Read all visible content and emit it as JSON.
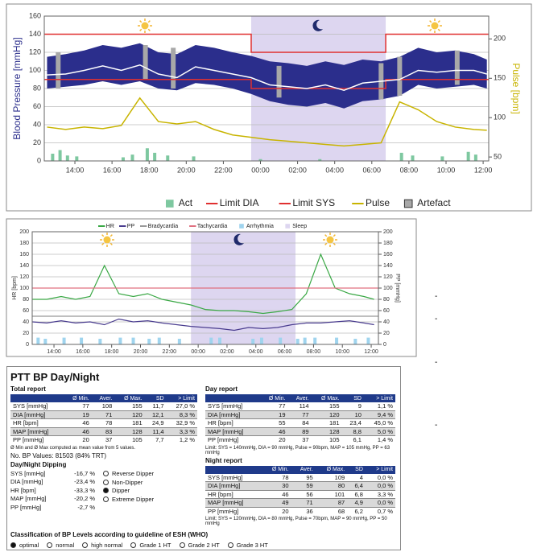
{
  "chart_data": [
    {
      "type": "line",
      "ylabel": "Blood Pressure [mmHg]",
      "y2label": "Pulse [bpm]",
      "xlim": [
        12.35,
        36.3
      ],
      "ylim": [
        0,
        160
      ],
      "y2lim": [
        45,
        229
      ],
      "xticks": [
        {
          "value": 14,
          "label": "14:00"
        },
        {
          "value": 16,
          "label": "16:00"
        },
        {
          "value": 18,
          "label": "18:00"
        },
        {
          "value": 20,
          "label": "20:00"
        },
        {
          "value": 22,
          "label": "22:00"
        },
        {
          "value": 24,
          "label": "00:00"
        },
        {
          "value": 26,
          "label": "02:00"
        },
        {
          "value": 28,
          "label": "04:00"
        },
        {
          "value": 30,
          "label": "06:00"
        },
        {
          "value": 32,
          "label": "08:00"
        },
        {
          "value": 34,
          "label": "10:00"
        },
        {
          "value": 36,
          "label": "12:00"
        }
      ],
      "yticks": [
        0,
        20,
        40,
        60,
        80,
        100,
        120,
        140,
        160
      ],
      "y2ticks": [
        50,
        100,
        150,
        200
      ],
      "grid": true,
      "series": [
        {
          "name": "Act",
          "kind": "bar",
          "color": "#7ec8a0",
          "x": [
            12.8,
            13.2,
            13.6,
            14.1,
            16.6,
            17.1,
            17.9,
            18.3,
            19.0,
            20.4,
            24.0,
            27.2,
            31.6,
            32.2,
            33.8,
            35.2,
            35.6
          ],
          "values": [
            8,
            12,
            6,
            5,
            4,
            7,
            14,
            9,
            6,
            5,
            2,
            2,
            9,
            6,
            5,
            10,
            7
          ]
        },
        {
          "name": "Limit DIA",
          "kind": "line",
          "color": "#e03030",
          "x": [
            12.35,
            23.5,
            23.5,
            30.75,
            30.75,
            36.3
          ],
          "values": [
            90,
            90,
            80,
            80,
            90,
            90
          ]
        },
        {
          "name": "Limit SYS",
          "kind": "line",
          "color": "#e03030",
          "x": [
            12.35,
            23.5,
            23.5,
            30.75,
            30.75,
            36.3
          ],
          "values": [
            140,
            140,
            120,
            120,
            140,
            140
          ]
        },
        {
          "name": "Pulse",
          "kind": "line",
          "axis": "y2",
          "color": "#c8b400",
          "x": [
            12.5,
            13.5,
            14.5,
            15.5,
            16.5,
            17.5,
            18.5,
            19.5,
            20.5,
            21.5,
            22.5,
            23.5,
            24.5,
            25.5,
            26.5,
            27.5,
            28.5,
            29.5,
            30.5,
            31.5,
            32.5,
            33.5,
            34.5,
            35.5,
            36.2
          ],
          "values": [
            88,
            85,
            88,
            86,
            90,
            125,
            95,
            92,
            95,
            85,
            78,
            75,
            72,
            70,
            68,
            66,
            64,
            66,
            68,
            120,
            110,
            95,
            88,
            85,
            84
          ]
        },
        {
          "name": "Artefact",
          "kind": "artefact",
          "color": "#a8a8a8",
          "x": [
            13.1,
            17.8,
            19.3,
            25.0,
            30.5,
            31.5,
            34.6
          ],
          "values": [
            120,
            128,
            125,
            105,
            108,
            115,
            122
          ],
          "low": [
            80,
            90,
            80,
            70,
            68,
            72,
            84
          ]
        },
        {
          "kind": "span",
          "color": "#ddd6f0",
          "x": [
            23.5,
            30.75
          ]
        },
        {
          "kind": "band",
          "color": "#2b2e8c",
          "x": [
            12.5,
            13.5,
            14.5,
            15.5,
            16.5,
            17.5,
            18.5,
            19.5,
            20.5,
            21.5,
            22.5,
            23.5,
            24.5,
            25.5,
            26.5,
            27.5,
            28.5,
            29.5,
            30.5,
            31.5,
            32.5,
            33.5,
            34.5,
            35.5,
            36.2
          ],
          "values": [
            115,
            118,
            122,
            128,
            125,
            130,
            120,
            118,
            128,
            125,
            120,
            116,
            110,
            108,
            105,
            110,
            106,
            112,
            110,
            115,
            125,
            120,
            122,
            118,
            112
          ],
          "low": [
            80,
            82,
            84,
            88,
            84,
            88,
            80,
            78,
            86,
            84,
            80,
            74,
            66,
            62,
            60,
            64,
            58,
            66,
            68,
            72,
            84,
            80,
            82,
            84,
            80
          ]
        },
        {
          "kind": "line",
          "color": "#ffffff",
          "x": [
            12.5,
            13.5,
            14.5,
            15.5,
            16.5,
            17.5,
            18.5,
            19.5,
            20.5,
            21.5,
            22.5,
            23.5,
            24.5,
            25.5,
            26.5,
            27.5,
            28.5,
            29.5,
            30.5,
            31.5,
            32.5,
            33.5,
            34.5,
            35.5,
            36.2
          ],
          "values": [
            95,
            96,
            100,
            105,
            100,
            106,
            96,
            92,
            104,
            100,
            96,
            92,
            84,
            82,
            80,
            84,
            78,
            86,
            88,
            90,
            100,
            98,
            100,
            100,
            96
          ]
        }
      ]
    },
    {
      "type": "line",
      "ylabel": "HR [bpm]",
      "y2label": "PP [mmHg]",
      "xlim": [
        12.49,
        36.5
      ],
      "ylim": [
        0,
        200
      ],
      "y2lim": [
        0,
        200
      ],
      "xticks": [
        {
          "value": 14,
          "label": "14:00"
        },
        {
          "value": 16,
          "label": "16:00"
        },
        {
          "value": 18,
          "label": "18:00"
        },
        {
          "value": 20,
          "label": "20:00"
        },
        {
          "value": 22,
          "label": "22:00"
        },
        {
          "value": 24,
          "label": "00:00"
        },
        {
          "value": 26,
          "label": "02:00"
        },
        {
          "value": 28,
          "label": "04:00"
        },
        {
          "value": 30,
          "label": "06:00"
        },
        {
          "value": 32,
          "label": "08:00"
        },
        {
          "value": 34,
          "label": "10:00"
        },
        {
          "value": 36,
          "label": "12:00"
        }
      ],
      "yticks": [
        0,
        20,
        40,
        60,
        80,
        100,
        120,
        140,
        160,
        180,
        200
      ],
      "y2ticks": [
        0,
        20,
        40,
        60,
        80,
        100,
        120,
        140,
        160,
        180,
        200
      ],
      "grid": true,
      "series": [
        {
          "name": "HR",
          "kind": "line",
          "color": "#3aa845",
          "x": [
            12.5,
            13.5,
            14.5,
            15.5,
            16.5,
            17.5,
            18.5,
            19.5,
            20.5,
            21.5,
            22.5,
            23.5,
            24.5,
            25.5,
            26.5,
            27.5,
            28.5,
            29.5,
            30.5,
            31.5,
            32.5,
            33.5,
            34.5,
            35.5,
            36.2
          ],
          "values": [
            80,
            80,
            85,
            80,
            85,
            140,
            90,
            85,
            90,
            80,
            75,
            70,
            62,
            60,
            60,
            58,
            55,
            58,
            62,
            90,
            160,
            100,
            90,
            85,
            80
          ]
        },
        {
          "name": "PP",
          "kind": "line",
          "axis": "y2",
          "color": "#4a3d8f",
          "x": [
            12.5,
            13.5,
            14.5,
            15.5,
            16.5,
            17.5,
            18.5,
            19.5,
            20.5,
            21.5,
            22.5,
            23.5,
            24.5,
            25.5,
            26.5,
            27.5,
            28.5,
            29.5,
            30.5,
            31.5,
            32.5,
            33.5,
            34.5,
            35.5,
            36.2
          ],
          "values": [
            40,
            38,
            42,
            38,
            40,
            35,
            45,
            40,
            42,
            38,
            35,
            32,
            30,
            28,
            25,
            30,
            28,
            30,
            35,
            38,
            38,
            40,
            42,
            38,
            35
          ]
        },
        {
          "name": "Bradycardia",
          "kind": "line",
          "color": "#999999",
          "x": [
            12.49,
            36.5
          ],
          "values": [
            50,
            50
          ]
        },
        {
          "name": "Tachycardia",
          "kind": "line",
          "color": "#e07080",
          "x": [
            12.49,
            36.5
          ],
          "values": [
            100,
            100
          ]
        },
        {
          "name": "Arrhythmia",
          "kind": "bar",
          "color": "#9fd4ee",
          "x": [
            12.9,
            13.4,
            14.7,
            15.9,
            17.2,
            18.6,
            19.5,
            20.6,
            21.3,
            22.7,
            24.9,
            25.5,
            27.8,
            28.4,
            29.7,
            30.9,
            31.4,
            32.1,
            33.6,
            34.9,
            35.8
          ],
          "values": [
            12,
            10,
            12,
            12,
            10,
            12,
            12,
            10,
            12,
            10,
            12,
            12,
            10,
            12,
            12,
            10,
            12,
            12,
            12,
            10,
            12
          ]
        },
        {
          "name": "Sleep",
          "kind": "span",
          "color": "#ddd6f0",
          "x": [
            23.5,
            30.75
          ]
        }
      ]
    }
  ],
  "margin_marks": [
    "-",
    "-",
    "-",
    "-"
  ],
  "report": {
    "title": "PTT BP Day/Night",
    "total": {
      "heading": "Total report",
      "columns": [
        "Ø Min.",
        "Aver.",
        "Ø Max.",
        "SD",
        "> Limit"
      ],
      "rows": [
        [
          "SYS [mmHg]",
          "77",
          "108",
          "155",
          "11,7",
          "27,0 %"
        ],
        [
          "DIA [mmHg]",
          "19",
          "71",
          "120",
          "12,1",
          "8,3 %"
        ],
        [
          "HR [bpm]",
          "46",
          "78",
          "181",
          "24,9",
          "32,9 %"
        ],
        [
          "MAP [mmHg]",
          "46",
          "83",
          "128",
          "11,4",
          "3,3 %"
        ],
        [
          "PP [mmHg]",
          "20",
          "37",
          "105",
          "7,7",
          "1,2 %"
        ]
      ],
      "note": "Ø Min and Ø Max computed as mean value from 5 values."
    },
    "bp_values": "No. BP Values: 81503 (84% TRT)",
    "dipping": {
      "heading": "Day/Night Dipping",
      "rows": [
        [
          "SYS [mmHg]",
          "-16,7 %"
        ],
        [
          "DIA [mmHg]",
          "-23,4 %"
        ],
        [
          "HR [bpm]",
          "-33,3 %"
        ],
        [
          "MAP [mmHg]",
          "-20,2 %"
        ],
        [
          "PP [mmHg]",
          "-2,7 %"
        ]
      ],
      "options": [
        {
          "label": "Reverse Dipper",
          "selected": false
        },
        {
          "label": "Non-Dipper",
          "selected": false
        },
        {
          "label": "Dipper",
          "selected": true
        },
        {
          "label": "Extreme Dipper",
          "selected": false
        }
      ]
    },
    "day": {
      "heading": "Day report",
      "columns": [
        "Ø Min.",
        "Aver.",
        "Ø Max.",
        "SD",
        "> Limit"
      ],
      "rows": [
        [
          "SYS [mmHg]",
          "77",
          "114",
          "155",
          "9",
          "1,1 %"
        ],
        [
          "DIA [mmHg]",
          "19",
          "77",
          "120",
          "10",
          "9,4 %"
        ],
        [
          "HR [bpm]",
          "55",
          "84",
          "181",
          "23,4",
          "45,0 %"
        ],
        [
          "MAP [mmHg]",
          "46",
          "89",
          "128",
          "8,8",
          "5,0 %"
        ],
        [
          "PP [mmHg]",
          "20",
          "37",
          "105",
          "6,1",
          "1,4 %"
        ]
      ],
      "limit": "Limit: SYS = 140mmHg, DIA = 90 mmHg, Pulse = 90bpm, MAP = 105 mmHg, PP = 63 mmHg"
    },
    "night": {
      "heading": "Night report",
      "columns": [
        "Ø Min.",
        "Aver.",
        "Ø Max.",
        "SD",
        "> Limit"
      ],
      "rows": [
        [
          "SYS [mmHg]",
          "78",
          "95",
          "109",
          "4",
          "0,0 %"
        ],
        [
          "DIA [mmHg]",
          "30",
          "59",
          "80",
          "6,4",
          "0,0 %"
        ],
        [
          "HR [bpm]",
          "46",
          "56",
          "101",
          "6,8",
          "3,3 %"
        ],
        [
          "MAP [mmHg]",
          "49",
          "71",
          "87",
          "4,9",
          "0,0 %"
        ],
        [
          "PP [mmHg]",
          "20",
          "36",
          "68",
          "6,2",
          "0,7 %"
        ]
      ],
      "limit": "Limit: SYS = 120mmHg, DIA = 80 mmHg, Pulse = 70bpm, MAP = 90 mmHg, PP = 50 mmHg"
    },
    "classification": {
      "heading": "Classification of BP Levels according to guideline of ESH (WHO)",
      "options": [
        {
          "label": "optimal",
          "selected": true
        },
        {
          "label": "normal",
          "selected": false
        },
        {
          "label": "high normal",
          "selected": false
        },
        {
          "label": "Grade 1 HT",
          "selected": false
        },
        {
          "label": "Grade 2 HT",
          "selected": false
        },
        {
          "label": "Grade 3 HT",
          "selected": false
        }
      ]
    }
  }
}
